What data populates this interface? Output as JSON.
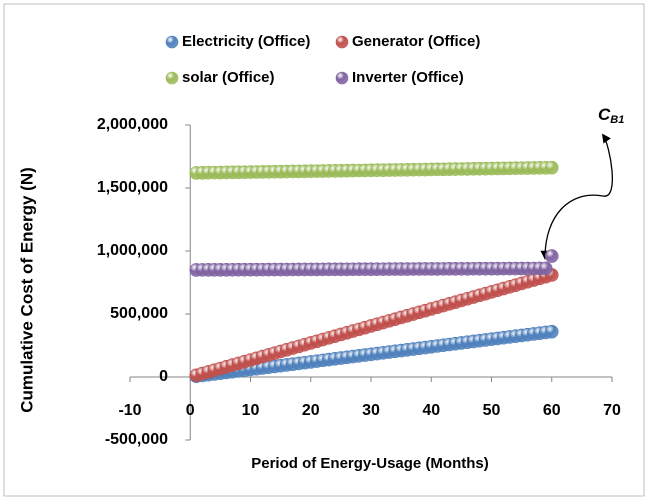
{
  "chart_data": {
    "type": "scatter",
    "x_label": "Period of Energy-Usage (Months)",
    "y_label": "Cumulative Cost of Energy (N)",
    "annotation": {
      "text": "C",
      "subscript": "B1"
    },
    "xlim": [
      -10,
      70
    ],
    "xticks": [
      -10,
      0,
      10,
      20,
      30,
      40,
      50,
      60,
      70
    ],
    "ylim": [
      -500000,
      2000000
    ],
    "yticks": [
      {
        "value": -500000,
        "label": "-500,000"
      },
      0,
      {
        "value": 500000,
        "label": "500,000"
      },
      {
        "value": 1000000,
        "label": "1,000,000"
      },
      {
        "value": 1500000,
        "label": "1,500,000"
      },
      {
        "value": 2000000,
        "label": "2,000,000"
      }
    ],
    "legend": "top",
    "x": [
      1,
      2,
      3,
      4,
      5,
      6,
      7,
      8,
      9,
      10,
      11,
      12,
      13,
      14,
      15,
      16,
      17,
      18,
      19,
      20,
      21,
      22,
      23,
      24,
      25,
      26,
      27,
      28,
      29,
      30,
      31,
      32,
      33,
      34,
      35,
      36,
      37,
      38,
      39,
      40,
      41,
      42,
      43,
      44,
      45,
      46,
      47,
      48,
      49,
      50,
      51,
      52,
      53,
      54,
      55,
      56,
      57,
      58,
      59,
      60
    ],
    "series": [
      {
        "name": "Electricity (Office)",
        "color": "#4f81bd",
        "values": [
          6000,
          12000,
          18000,
          24000,
          30000,
          36000,
          42000,
          48000,
          54000,
          60000,
          66000,
          72000,
          78000,
          84000,
          90000,
          96000,
          102000,
          108000,
          114000,
          120000,
          126000,
          132000,
          138000,
          144000,
          150000,
          156000,
          162000,
          168000,
          174000,
          180000,
          186000,
          192000,
          198000,
          204000,
          210000,
          216000,
          222000,
          228000,
          234000,
          240000,
          246000,
          252000,
          258000,
          264000,
          270000,
          276000,
          282000,
          288000,
          294000,
          300000,
          306000,
          312000,
          318000,
          324000,
          330000,
          336000,
          342000,
          348000,
          354000,
          360000
        ]
      },
      {
        "name": "Generator (Office)",
        "color": "#c0504d",
        "values": [
          13500,
          27000,
          40500,
          54000,
          67500,
          81000,
          94500,
          108000,
          121500,
          135000,
          148500,
          162000,
          175500,
          189000,
          202500,
          216000,
          229500,
          243000,
          256500,
          270000,
          283500,
          297000,
          310500,
          324000,
          337500,
          351000,
          364500,
          378000,
          391500,
          405000,
          418500,
          432000,
          445500,
          459000,
          472500,
          486000,
          499500,
          513000,
          526500,
          540000,
          553500,
          567000,
          580500,
          594000,
          607500,
          621000,
          634500,
          648000,
          661500,
          675000,
          688500,
          702000,
          715500,
          729000,
          742500,
          756000,
          769500,
          783000,
          796500,
          810000
        ]
      },
      {
        "name": "solar (Office)",
        "color": "#9bbb59",
        "values": [
          1620000,
          1620700,
          1621400,
          1622100,
          1622800,
          1623500,
          1624200,
          1624900,
          1625600,
          1626300,
          1627000,
          1627700,
          1628400,
          1629100,
          1629800,
          1630500,
          1631200,
          1631900,
          1632600,
          1633300,
          1634000,
          1634700,
          1635400,
          1636100,
          1636800,
          1637500,
          1638200,
          1638900,
          1639600,
          1640300,
          1641000,
          1641700,
          1642400,
          1643100,
          1643800,
          1644500,
          1645200,
          1645900,
          1646600,
          1647300,
          1648000,
          1648700,
          1649400,
          1650100,
          1650800,
          1651500,
          1652200,
          1652900,
          1653600,
          1654300,
          1655000,
          1655700,
          1656400,
          1657100,
          1657800,
          1658500,
          1659200,
          1659900,
          1660600,
          1661300
        ]
      },
      {
        "name": "Inverter (Office)",
        "color": "#8064a2",
        "values": [
          850000,
          850200,
          850400,
          850600,
          850800,
          851000,
          851200,
          851400,
          851600,
          851800,
          852000,
          852200,
          852400,
          852600,
          852800,
          853000,
          853200,
          853400,
          853600,
          853800,
          854000,
          854200,
          854400,
          854600,
          854800,
          855000,
          855200,
          855400,
          855600,
          855800,
          856000,
          856200,
          856400,
          856600,
          856800,
          857000,
          857200,
          857400,
          857600,
          857800,
          858000,
          858200,
          858400,
          858600,
          858800,
          859000,
          859200,
          859400,
          859600,
          859800,
          860000,
          860200,
          860400,
          860600,
          860800,
          861000,
          861200,
          861400,
          861600,
          960000
        ]
      }
    ]
  }
}
